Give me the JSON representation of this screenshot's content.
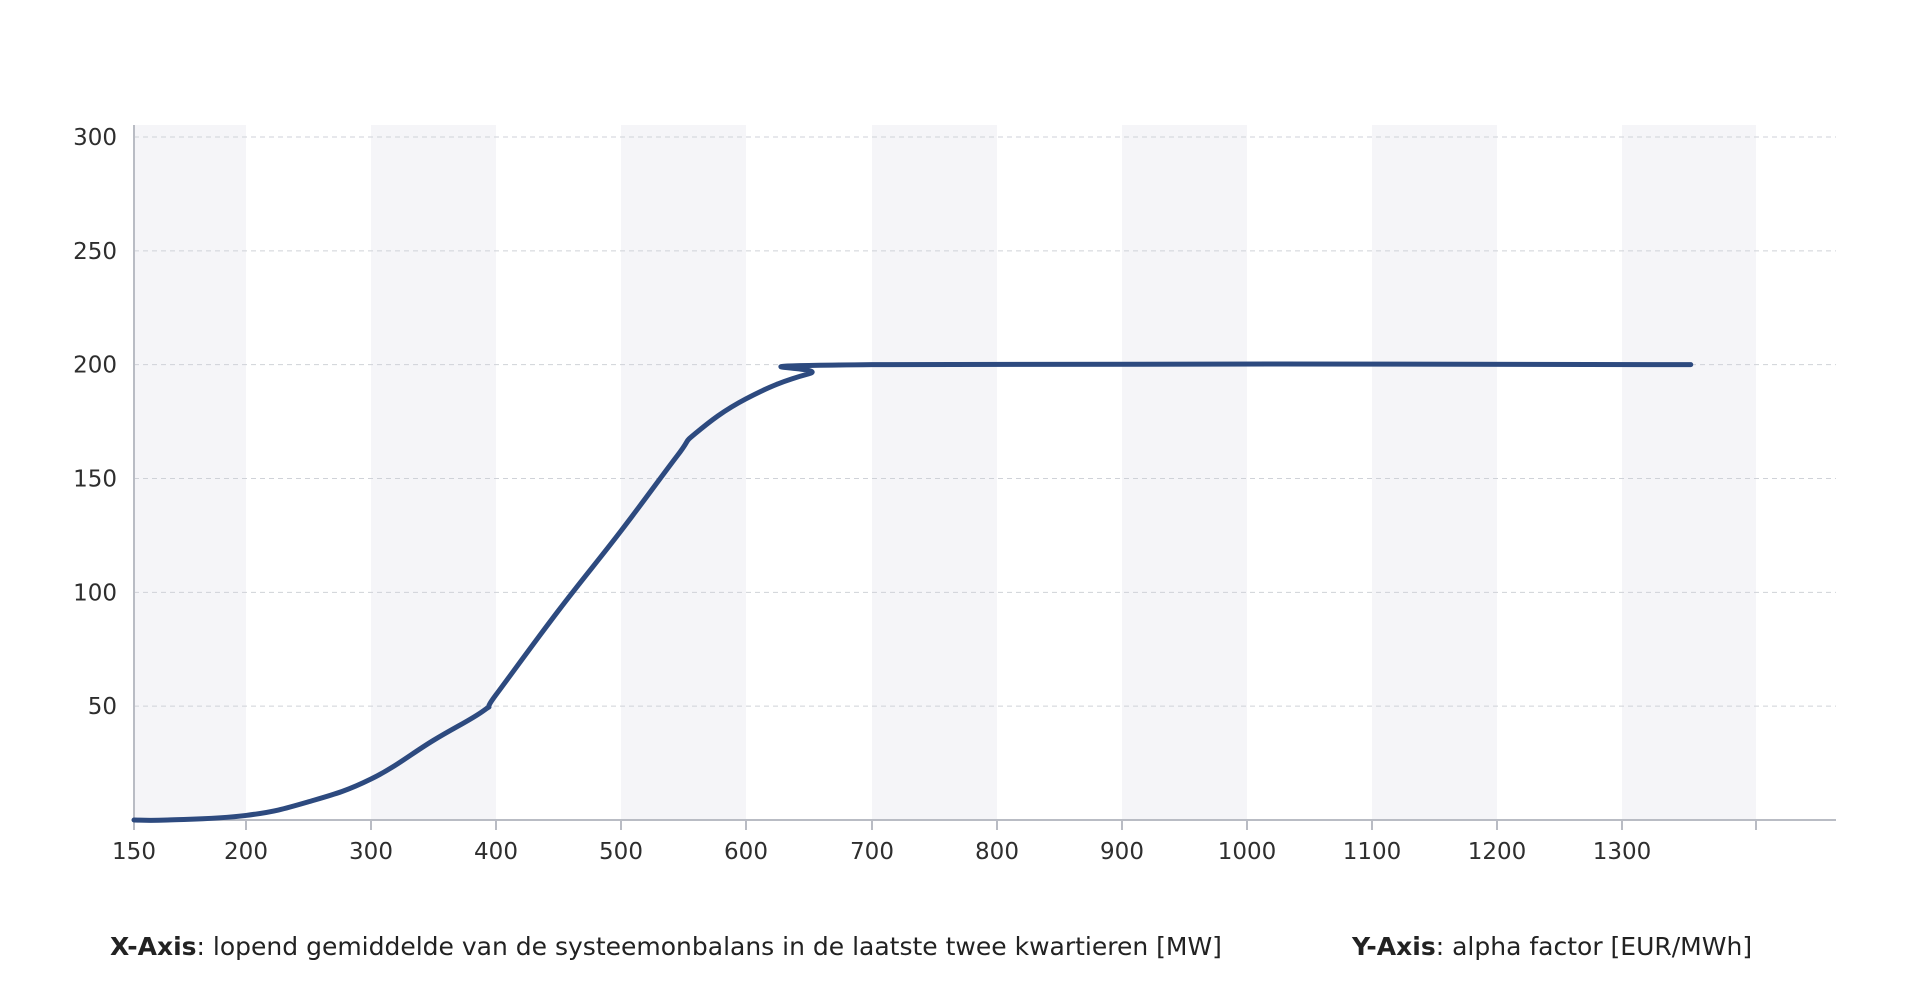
{
  "chart_data": {
    "type": "line",
    "x_ticks": [
      150,
      200,
      300,
      400,
      500,
      600,
      700,
      800,
      900,
      1000,
      1100,
      1200,
      1300
    ],
    "y_ticks": [
      50,
      100,
      150,
      200,
      250,
      300
    ],
    "xlim": [
      150,
      1505
    ],
    "ylim": [
      0,
      300
    ],
    "grid": true,
    "alternating_bands": true,
    "series": [
      {
        "color": "#2d4a7f",
        "x": [
          150,
          165,
          200,
          250,
          300,
          350,
          390,
          400,
          450,
          500,
          545,
          560,
          600,
          650,
          700,
          1355
        ],
        "y": [
          0,
          0,
          2,
          8,
          18,
          35,
          48,
          55,
          92,
          127,
          160,
          170,
          185,
          196,
          200,
          200
        ]
      }
    ],
    "x_axis_caption_label": "X-Axis",
    "x_axis_caption_text": ": lopend gemiddelde van de systeemonbalans in de laatste twee kwartieren [MW]",
    "y_axis_caption_label": "Y-Axis",
    "y_axis_caption_text": ": alpha factor [EUR/MWh]"
  },
  "colors": {
    "line": "#2d4a7f",
    "band": "#f5f5f8",
    "grid": "#cfd2d8",
    "axis": "#b9bcc4"
  }
}
